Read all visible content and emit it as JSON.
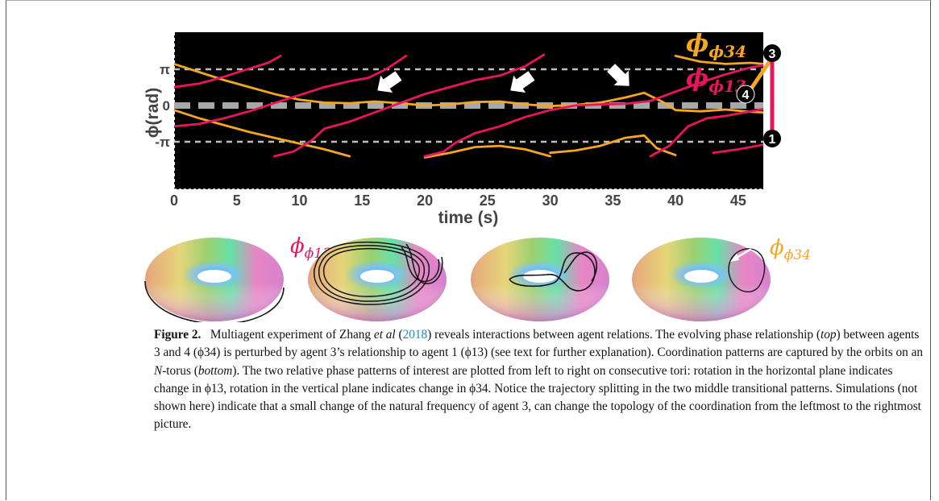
{
  "chart_data": {
    "type": "line",
    "xlabel": "time (s)",
    "ylabel": "ϕ(rad)",
    "x_ticks": [
      "0",
      "5",
      "10",
      "15",
      "20",
      "25",
      "30",
      "35",
      "40",
      "45"
    ],
    "y_ticks": [
      "π",
      "0",
      "-π"
    ],
    "xlim": [
      0,
      47
    ],
    "series": [
      {
        "name": "ϕ34",
        "color": "#f5a623",
        "segments": [
          [
            [
              0,
              3.6
            ],
            [
              2,
              2.9
            ],
            [
              4,
              2.2
            ],
            [
              6,
              1.6
            ],
            [
              8,
              1.0
            ],
            [
              10,
              0.5
            ],
            [
              12,
              0.25
            ],
            [
              14,
              0.2
            ],
            [
              16,
              0.35
            ],
            [
              18,
              0.2
            ],
            [
              20,
              0.0
            ],
            [
              22,
              0.1
            ],
            [
              24,
              0.3
            ],
            [
              26,
              0.35
            ],
            [
              28,
              0.1
            ],
            [
              30,
              -0.05
            ],
            [
              32,
              0.05
            ],
            [
              34,
              0.25
            ],
            [
              36,
              0.7
            ],
            [
              37.5,
              1.1
            ],
            [
              39,
              0.3
            ],
            [
              40,
              -0.4
            ],
            [
              42,
              -0.5
            ],
            [
              44,
              -0.35
            ],
            [
              46,
              -0.55
            ],
            [
              47,
              -0.6
            ]
          ],
          [
            [
              0,
              -0.4
            ],
            [
              2,
              -1.1
            ],
            [
              4,
              -1.7
            ],
            [
              6,
              -2.3
            ],
            [
              8,
              -2.8
            ],
            [
              10,
              -3.3
            ],
            [
              12,
              -3.8
            ],
            [
              14,
              -4.4
            ]
          ],
          [
            [
              20,
              -4.5
            ],
            [
              22,
              -4.1
            ],
            [
              24,
              -3.6
            ],
            [
              26,
              -3.5
            ],
            [
              28,
              -3.8
            ],
            [
              30,
              -4.4
            ]
          ],
          [
            [
              30,
              -4.1
            ],
            [
              32,
              -3.9
            ],
            [
              34,
              -3.5
            ],
            [
              36,
              -2.8
            ],
            [
              37.5,
              -2.6
            ],
            [
              38.5,
              -3.7
            ],
            [
              40,
              -4.3
            ]
          ],
          [
            [
              40,
              4.3
            ],
            [
              42,
              3.8
            ],
            [
              44,
              3.6
            ],
            [
              46,
              3.7
            ],
            [
              47,
              3.6
            ]
          ]
        ]
      },
      {
        "name": "ϕ13",
        "color": "#e8155e",
        "segments": [
          [
            [
              0,
              1.6
            ],
            [
              2,
              1.9
            ],
            [
              4,
              2.5
            ],
            [
              6,
              3.2
            ],
            [
              7.5,
              3.7
            ],
            [
              8.5,
              4.3
            ]
          ],
          [
            [
              0,
              -1.8
            ],
            [
              2,
              -1.6
            ],
            [
              4,
              -1.1
            ],
            [
              6,
              -0.5
            ],
            [
              8,
              0.2
            ],
            [
              10,
              0.9
            ],
            [
              12,
              1.6
            ],
            [
              14,
              2.1
            ],
            [
              15.5,
              2.4
            ],
            [
              17,
              3.2
            ],
            [
              18.5,
              4.3
            ]
          ],
          [
            [
              8,
              -4.4
            ],
            [
              9.5,
              -4.0
            ],
            [
              11,
              -3.0
            ],
            [
              12,
              -2.0
            ],
            [
              14,
              -1.4
            ],
            [
              16,
              -0.6
            ],
            [
              18,
              0.2
            ],
            [
              20,
              1.0
            ],
            [
              22,
              1.6
            ],
            [
              24,
              2.2
            ],
            [
              26,
              2.6
            ],
            [
              28,
              3.4
            ],
            [
              29.5,
              4.4
            ]
          ],
          [
            [
              20,
              -4.4
            ],
            [
              21.5,
              -4.0
            ],
            [
              22.5,
              -3.2
            ],
            [
              24,
              -2.4
            ],
            [
              26,
              -1.8
            ],
            [
              28,
              -1.0
            ],
            [
              30,
              -0.4
            ],
            [
              32,
              0.0
            ],
            [
              34,
              0.1
            ],
            [
              36,
              0.15
            ],
            [
              38,
              0.4
            ],
            [
              40,
              1.2
            ],
            [
              42,
              2.0
            ],
            [
              44,
              2.7
            ],
            [
              46,
              3.3
            ],
            [
              47,
              3.5
            ]
          ],
          [
            [
              38,
              -4.4
            ],
            [
              39.5,
              -3.5
            ],
            [
              41,
              -1.8
            ],
            [
              42.5,
              -1.1
            ],
            [
              44,
              -0.9
            ],
            [
              46,
              -0.5
            ],
            [
              47,
              -0.3
            ]
          ],
          [
            [
              43,
              -4.1
            ],
            [
              45,
              -3.8
            ],
            [
              47,
              -3.4
            ]
          ]
        ]
      }
    ],
    "annotations": [
      "ϕ34",
      "ϕ13"
    ],
    "node_labels": [
      "3",
      "4",
      "1"
    ]
  },
  "tori": {
    "label_phi13": "ϕ13",
    "label_phi34": "ϕ34"
  },
  "caption": {
    "figure_label": "Figure 2.",
    "p1": "Multiagent experiment of Zhang ",
    "etal": "et al",
    "p2": " (",
    "year": "2018",
    "p3": ") reveals interactions between agent relations. The evolving phase relationship (",
    "top": "top",
    "p4": ") between agents 3 and 4 (ϕ34) is perturbed by agent 3’s relationship to agent 1 (ϕ13) (see text for further explanation). Coordination patterns are captured by the orbits on an ",
    "n": "N",
    "p5": "-torus (",
    "bottom": "bottom",
    "p6": "). The two relative phase patterns of interest are plotted from left to right on consecutive tori: rotation in the horizontal plane indicates change in ϕ13, rotation in the vertical plane indicates change in ϕ34. Notice the trajectory splitting in the two middle transitional patterns. Simulations (not shown here) indicate that a small change of the natural frequency of agent 3, can change the topology of the coordination from the leftmost to the rightmost picture."
  }
}
